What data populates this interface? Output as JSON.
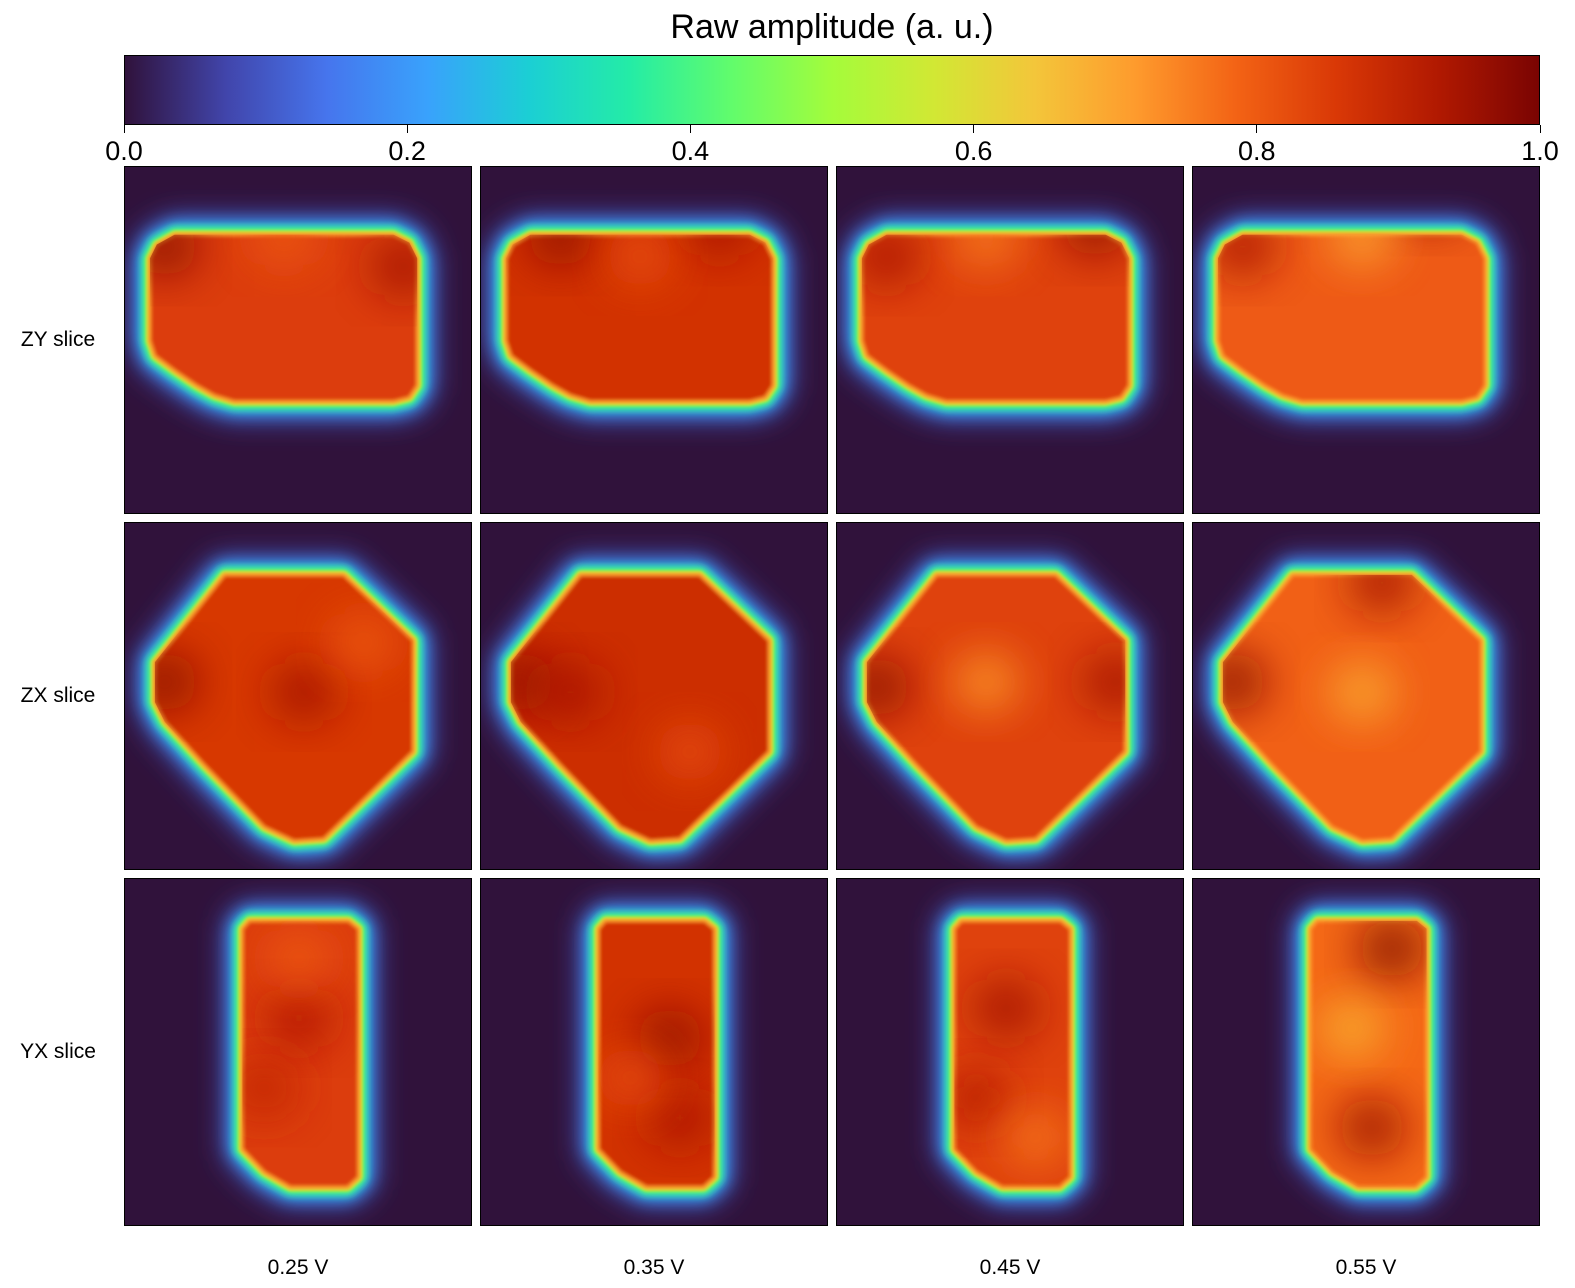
{
  "colorbar": {
    "title": "Raw amplitude (a. u.)",
    "colormap": "turbo",
    "range": [
      0.0,
      1.0
    ],
    "ticks": [
      "0.0",
      "0.2",
      "0.4",
      "0.6",
      "0.8",
      "1.0"
    ],
    "stops": [
      "#30123b",
      "#4145ab",
      "#4675ed",
      "#39a2fc",
      "#1bcfd4",
      "#24eca6",
      "#61fc6c",
      "#a4fc3b",
      "#d1e834",
      "#f3c63a",
      "#fe9b2d",
      "#f36315",
      "#d93806",
      "#b11901",
      "#7a0402"
    ]
  },
  "chart_data": {
    "type": "heatmap",
    "title": "",
    "rows": [
      "ZY slice",
      "ZX slice",
      "YX slice"
    ],
    "columns": [
      "0.25 V",
      "0.35 V",
      "0.45 V",
      "0.55 V"
    ],
    "value_range": [
      0.0,
      1.0
    ],
    "background_value": 0.0,
    "edge_value": 0.45,
    "interior_mean_values": [
      [
        0.85,
        0.87,
        0.84,
        0.8
      ],
      [
        0.86,
        0.88,
        0.84,
        0.79
      ],
      [
        0.85,
        0.87,
        0.84,
        0.78
      ]
    ],
    "interior_max_values": [
      [
        0.98,
        0.97,
        0.97,
        0.97
      ],
      [
        0.98,
        0.97,
        0.98,
        0.98
      ],
      [
        0.93,
        0.97,
        0.95,
        0.99
      ]
    ],
    "interior_min_values": [
      [
        0.8,
        0.82,
        0.75,
        0.7
      ],
      [
        0.8,
        0.82,
        0.72,
        0.69
      ],
      [
        0.8,
        0.82,
        0.76,
        0.68
      ]
    ]
  }
}
